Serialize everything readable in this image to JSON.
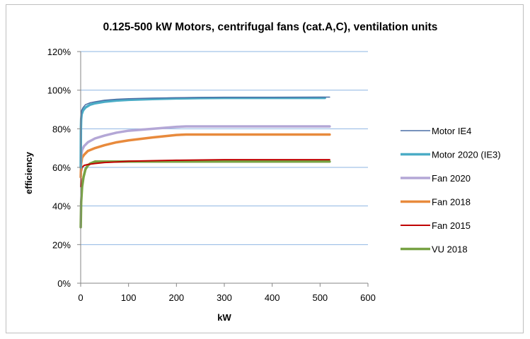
{
  "chart_data": {
    "type": "line",
    "title": "0.125-500 kW Motors, centrifugal fans (cat.A,C), ventilation units",
    "xlabel": "kW",
    "ylabel": "efficiency",
    "xlim": [
      0,
      600
    ],
    "ylim": [
      0,
      1.2
    ],
    "x_ticks": [
      0,
      100,
      200,
      300,
      400,
      500,
      600
    ],
    "y_ticks": [
      0,
      0.2,
      0.4,
      0.6,
      0.8,
      1.0,
      1.2
    ],
    "x_tick_labels": [
      "0",
      "100",
      "200",
      "300",
      "400",
      "500",
      "600"
    ],
    "y_tick_labels": [
      "0%",
      "20%",
      "40%",
      "60%",
      "80%",
      "100%",
      "120%"
    ],
    "grid": "horizontal",
    "legend_position": "right",
    "series": [
      {
        "name": "Motor IE4",
        "color": "#4a6fa5",
        "width": 1.5,
        "points": [
          [
            0.125,
            0.62
          ],
          [
            0.5,
            0.83
          ],
          [
            1,
            0.875
          ],
          [
            2,
            0.895
          ],
          [
            5,
            0.91
          ],
          [
            10,
            0.925
          ],
          [
            20,
            0.935
          ],
          [
            30,
            0.94
          ],
          [
            50,
            0.948
          ],
          [
            75,
            0.953
          ],
          [
            100,
            0.956
          ],
          [
            150,
            0.959
          ],
          [
            200,
            0.961
          ],
          [
            250,
            0.962
          ],
          [
            300,
            0.963
          ],
          [
            400,
            0.963
          ],
          [
            500,
            0.964
          ],
          [
            520,
            0.964
          ]
        ]
      },
      {
        "name": "Motor 2020 (IE3)",
        "color": "#4bacc6",
        "width": 3.5,
        "points": [
          [
            0.125,
            0.6
          ],
          [
            0.5,
            0.8
          ],
          [
            1,
            0.85
          ],
          [
            2,
            0.875
          ],
          [
            5,
            0.895
          ],
          [
            10,
            0.91
          ],
          [
            20,
            0.925
          ],
          [
            30,
            0.932
          ],
          [
            50,
            0.94
          ],
          [
            75,
            0.946
          ],
          [
            100,
            0.95
          ],
          [
            150,
            0.954
          ],
          [
            200,
            0.957
          ],
          [
            250,
            0.959
          ],
          [
            300,
            0.96
          ],
          [
            400,
            0.96
          ],
          [
            500,
            0.96
          ],
          [
            510,
            0.96
          ]
        ]
      },
      {
        "name": "Fan 2020",
        "color": "#b4a7d6",
        "width": 3.5,
        "points": [
          [
            0.125,
            0.6
          ],
          [
            1,
            0.66
          ],
          [
            3,
            0.69
          ],
          [
            7,
            0.71
          ],
          [
            15,
            0.73
          ],
          [
            30,
            0.75
          ],
          [
            50,
            0.765
          ],
          [
            75,
            0.78
          ],
          [
            100,
            0.79
          ],
          [
            150,
            0.8
          ],
          [
            200,
            0.81
          ],
          [
            220,
            0.812
          ],
          [
            300,
            0.812
          ],
          [
            400,
            0.812
          ],
          [
            520,
            0.812
          ]
        ]
      },
      {
        "name": "Fan 2018",
        "color": "#e88a3c",
        "width": 3.5,
        "points": [
          [
            0.125,
            0.55
          ],
          [
            1,
            0.62
          ],
          [
            3,
            0.65
          ],
          [
            7,
            0.665
          ],
          [
            15,
            0.685
          ],
          [
            30,
            0.7
          ],
          [
            50,
            0.715
          ],
          [
            75,
            0.73
          ],
          [
            100,
            0.74
          ],
          [
            150,
            0.755
          ],
          [
            200,
            0.768
          ],
          [
            220,
            0.77
          ],
          [
            300,
            0.77
          ],
          [
            400,
            0.77
          ],
          [
            520,
            0.77
          ]
        ]
      },
      {
        "name": "Fan 2015",
        "color": "#c00000",
        "width": 2,
        "points": [
          [
            0.125,
            0.5
          ],
          [
            1,
            0.57
          ],
          [
            3,
            0.6
          ],
          [
            7,
            0.61
          ],
          [
            15,
            0.615
          ],
          [
            30,
            0.62
          ],
          [
            50,
            0.625
          ],
          [
            75,
            0.628
          ],
          [
            100,
            0.632
          ],
          [
            200,
            0.637
          ],
          [
            300,
            0.64
          ],
          [
            400,
            0.64
          ],
          [
            520,
            0.64
          ]
        ]
      },
      {
        "name": "VU 2018",
        "color": "#77a243",
        "width": 3.5,
        "points": [
          [
            0.125,
            0.29
          ],
          [
            1,
            0.42
          ],
          [
            3,
            0.5
          ],
          [
            6,
            0.55
          ],
          [
            10,
            0.59
          ],
          [
            15,
            0.61
          ],
          [
            20,
            0.62
          ],
          [
            30,
            0.63
          ],
          [
            50,
            0.63
          ],
          [
            100,
            0.63
          ],
          [
            200,
            0.63
          ],
          [
            300,
            0.63
          ],
          [
            400,
            0.63
          ],
          [
            520,
            0.63
          ]
        ]
      }
    ]
  }
}
